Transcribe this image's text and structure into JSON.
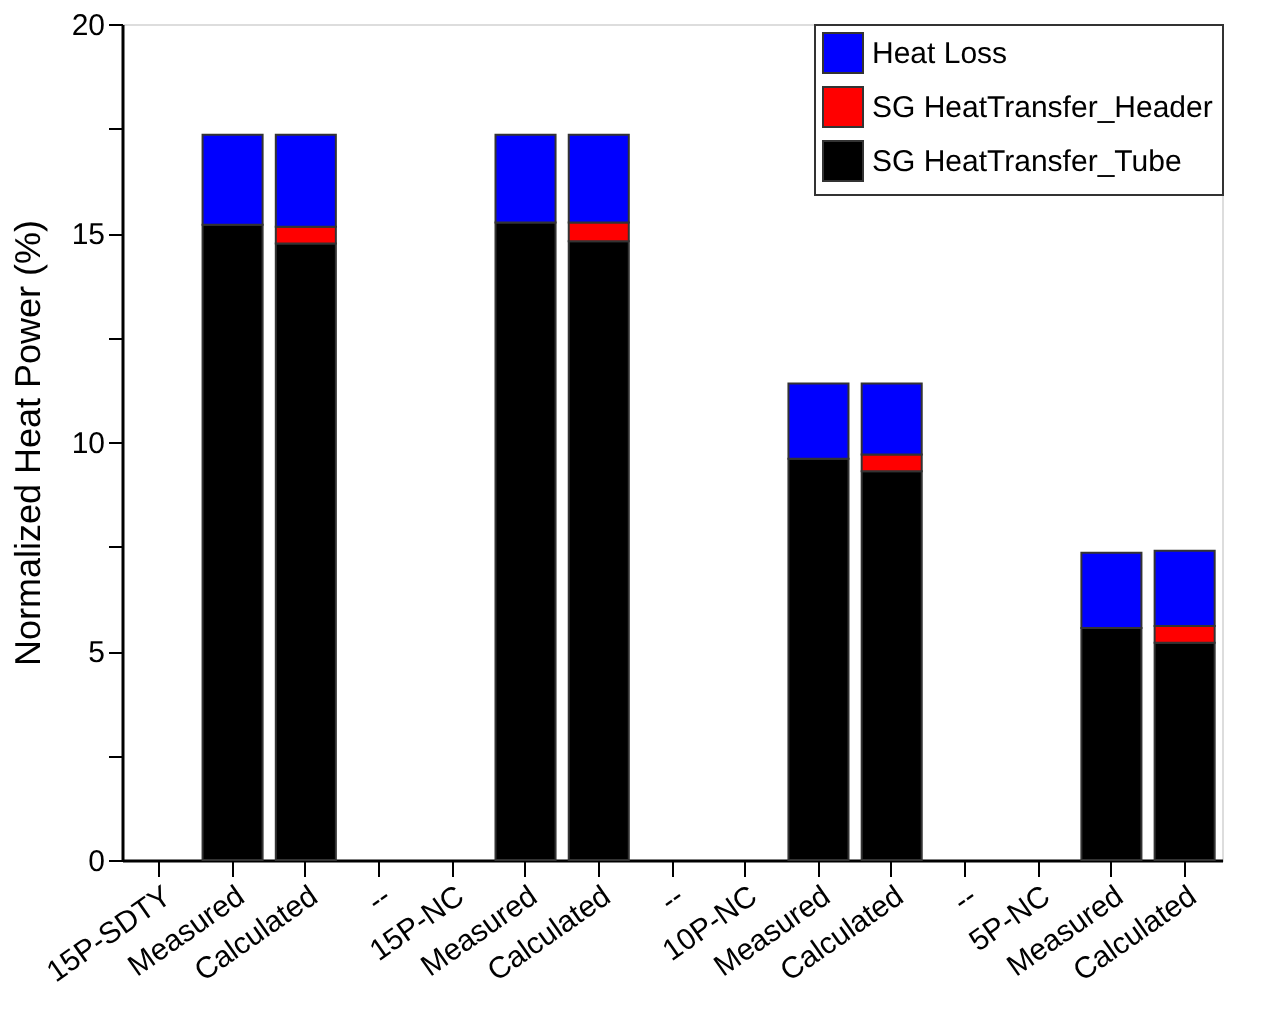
{
  "chart_data": {
    "type": "bar",
    "stacked": true,
    "ylabel": "Normalized Heat Power (%)",
    "categories": [
      "15P-SDTY",
      "Measured",
      "Calculated",
      "--",
      "15P-NC",
      "Measured",
      "Calculated",
      "--",
      "10P-NC",
      "Measured",
      "Calculated",
      "--",
      "5P-NC",
      "Measured",
      "Calculated"
    ],
    "series": [
      {
        "name": "SG HeatTransfer_Tube",
        "color": "#000000",
        "values": [
          null,
          15.2,
          14.75,
          null,
          null,
          15.25,
          14.8,
          null,
          null,
          9.6,
          9.3,
          null,
          null,
          5.55,
          5.2
        ]
      },
      {
        "name": "SG HeatTransfer_Header",
        "color": "#ff0000",
        "values": [
          null,
          null,
          0.4,
          null,
          null,
          null,
          0.45,
          null,
          null,
          null,
          0.4,
          null,
          null,
          null,
          0.4
        ]
      },
      {
        "name": "Heat Loss",
        "color": "#0000ff",
        "values": [
          null,
          2.15,
          2.2,
          null,
          null,
          2.1,
          2.1,
          null,
          null,
          1.8,
          1.7,
          null,
          null,
          1.8,
          1.8
        ]
      }
    ],
    "ylim": [
      0,
      20
    ],
    "yticks": [
      0,
      {
        "value": 2.5,
        "label": null
      },
      5,
      {
        "value": 7.5,
        "label": null
      },
      10,
      {
        "value": 12.5,
        "label": null
      },
      15,
      {
        "value": 17.5,
        "label": null
      },
      20
    ],
    "legend": "top right",
    "grid": false
  }
}
